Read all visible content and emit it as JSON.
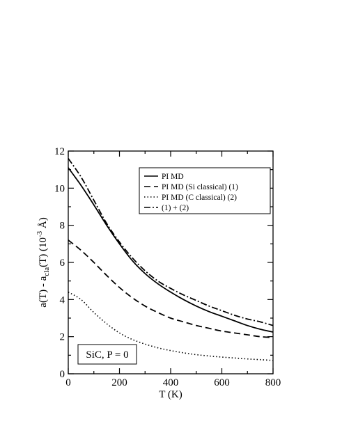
{
  "chart_data": {
    "type": "line",
    "title": "",
    "xlabel": "T (K)",
    "ylabel": {
      "main": "a(T) - a",
      "sub": "cla",
      "rest": "(T)  (10",
      "sup": "-3",
      "unit": " Å)"
    },
    "xlim": [
      0,
      800
    ],
    "ylim": [
      0,
      12
    ],
    "xticks": [
      0,
      200,
      400,
      600,
      800
    ],
    "yticks": [
      0,
      2,
      4,
      6,
      8,
      10,
      12
    ],
    "grid": false,
    "legend_position": "top-right",
    "annotation": "SiC, P = 0",
    "series": [
      {
        "name": "PI MD",
        "dash": "solid",
        "x": [
          0,
          50,
          100,
          150,
          200,
          250,
          300,
          350,
          400,
          450,
          500,
          550,
          600,
          650,
          700,
          750,
          800
        ],
        "y": [
          11.1,
          10.15,
          9.1,
          8.0,
          7.0,
          6.1,
          5.4,
          4.85,
          4.4,
          4.0,
          3.65,
          3.35,
          3.1,
          2.85,
          2.6,
          2.4,
          2.25
        ]
      },
      {
        "name": "PI MD (Si classical)  (1)",
        "dash": "dashed",
        "x": [
          0,
          50,
          100,
          150,
          200,
          250,
          300,
          350,
          400,
          450,
          500,
          550,
          600,
          650,
          700,
          750,
          800
        ],
        "y": [
          7.2,
          6.65,
          6.0,
          5.3,
          4.65,
          4.1,
          3.65,
          3.3,
          3.0,
          2.8,
          2.6,
          2.45,
          2.3,
          2.2,
          2.1,
          2.0,
          1.95
        ]
      },
      {
        "name": "PI MD (C  classical)  (2)",
        "dash": "dotted",
        "x": [
          0,
          50,
          100,
          150,
          200,
          250,
          300,
          350,
          400,
          450,
          500,
          550,
          600,
          650,
          700,
          750,
          800
        ],
        "y": [
          4.4,
          4.0,
          3.3,
          2.7,
          2.2,
          1.85,
          1.6,
          1.4,
          1.25,
          1.13,
          1.03,
          0.96,
          0.9,
          0.85,
          0.8,
          0.76,
          0.72
        ]
      },
      {
        "name": "(1) + (2)",
        "dash": "dashdot",
        "x": [
          0,
          50,
          100,
          150,
          200,
          250,
          300,
          350,
          400,
          450,
          500,
          550,
          600,
          650,
          700,
          750,
          800
        ],
        "y": [
          11.6,
          10.6,
          9.35,
          8.1,
          7.1,
          6.25,
          5.55,
          5.0,
          4.6,
          4.25,
          3.95,
          3.65,
          3.4,
          3.15,
          2.95,
          2.8,
          2.6
        ]
      }
    ]
  }
}
